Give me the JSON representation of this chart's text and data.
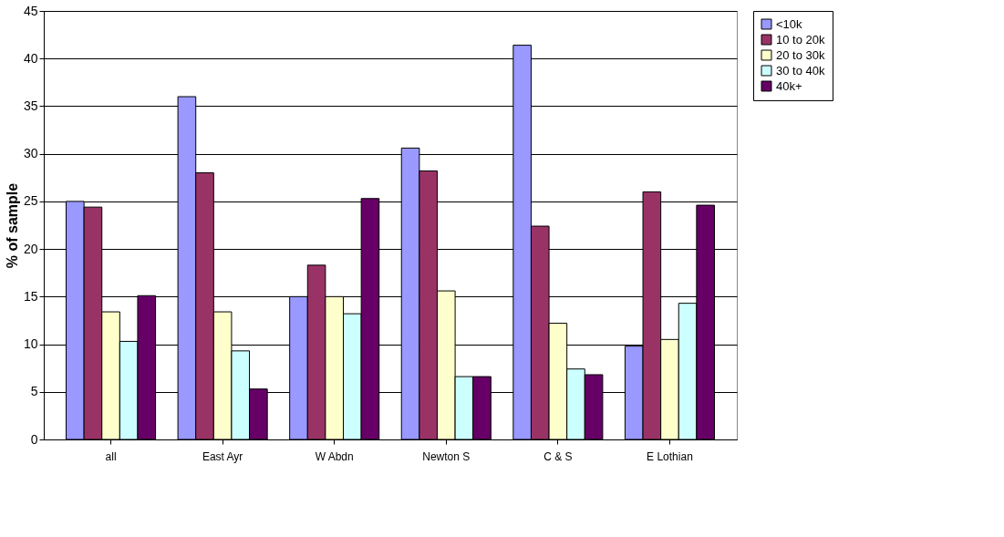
{
  "chart_data": {
    "type": "bar",
    "ylabel": "% of sample",
    "categories": [
      "all",
      "East Ayr",
      "W Abdn",
      "Newton S",
      "C & S",
      "E Lothian"
    ],
    "series": [
      {
        "name": "<10k",
        "color": "#9999ff",
        "values": [
          25,
          36,
          15,
          30.6,
          41.4,
          9.8
        ]
      },
      {
        "name": "10 to 20k",
        "color": "#993366",
        "values": [
          24.4,
          28,
          18.3,
          28.2,
          22.4,
          26
        ]
      },
      {
        "name": "20 to 30k",
        "color": "#ffffcc",
        "values": [
          13.4,
          13.4,
          15,
          15.6,
          12.2,
          10.5
        ]
      },
      {
        "name": "30 to 40k",
        "color": "#ccffff",
        "values": [
          10.3,
          9.3,
          13.2,
          6.6,
          7.4,
          14.3
        ]
      },
      {
        "name": "40k+",
        "color": "#660066",
        "values": [
          15.1,
          5.3,
          25.3,
          6.6,
          6.8,
          24.6
        ]
      }
    ],
    "ylim": [
      0,
      45
    ],
    "yticks": [
      0,
      5,
      10,
      15,
      20,
      25,
      30,
      35,
      40,
      45
    ],
    "grid": "y",
    "legend": "right"
  }
}
